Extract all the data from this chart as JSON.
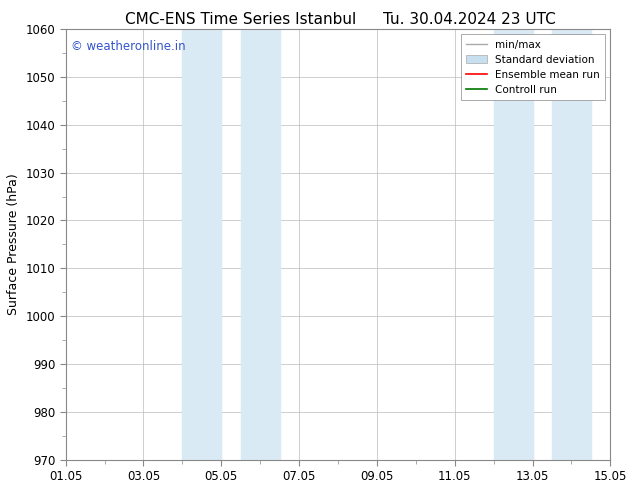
{
  "title_left": "CMC-ENS Time Series Istanbul",
  "title_right": "Tu. 30.04.2024 23 UTC",
  "ylabel": "Surface Pressure (hPa)",
  "xlabel_ticks": [
    "01.05",
    "03.05",
    "05.05",
    "07.05",
    "09.05",
    "11.05",
    "13.05",
    "15.05"
  ],
  "x_tick_positions": [
    0,
    2,
    4,
    6,
    8,
    10,
    12,
    14
  ],
  "xlim": [
    0,
    14
  ],
  "ylim": [
    970,
    1060
  ],
  "yticks": [
    970,
    980,
    990,
    1000,
    1010,
    1020,
    1030,
    1040,
    1050,
    1060
  ],
  "shaded_bands": [
    {
      "x_start": 3.0,
      "x_end": 4.0
    },
    {
      "x_start": 4.5,
      "x_end": 5.5
    },
    {
      "x_start": 11.0,
      "x_end": 12.0
    },
    {
      "x_start": 12.5,
      "x_end": 13.5
    }
  ],
  "shaded_color": "#daeaf5",
  "background_color": "#ffffff",
  "watermark_text": "© weatheronline.in",
  "watermark_color": "#3355cc",
  "legend_entries": [
    {
      "label": "min/max",
      "color": "#aaaaaa",
      "lw": 1.0
    },
    {
      "label": "Standard deviation",
      "color": "#c8dff0",
      "lw": 6
    },
    {
      "label": "Ensemble mean run",
      "color": "#ff0000",
      "lw": 1.2
    },
    {
      "label": "Controll run",
      "color": "#007700",
      "lw": 1.2
    }
  ],
  "grid_color": "#bbbbbb",
  "tick_label_fontsize": 8.5,
  "title_fontsize": 11,
  "axis_label_fontsize": 9,
  "watermark_fontsize": 8.5
}
